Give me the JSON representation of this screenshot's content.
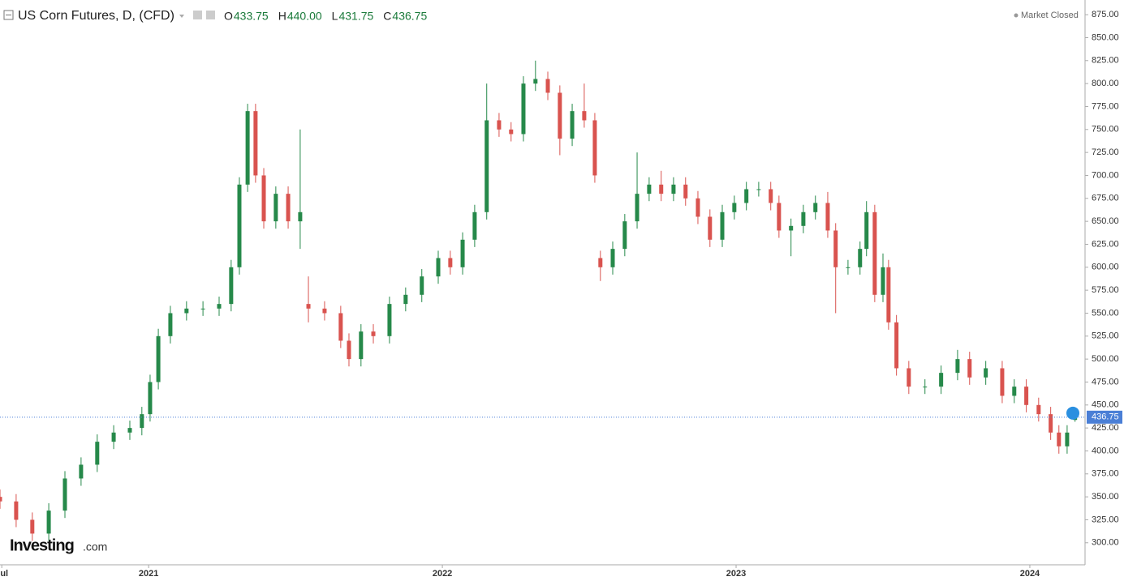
{
  "chart_data": {
    "type": "candlestick",
    "title": "US Corn Futures, D, (CFD)",
    "ohlc_header": [
      {
        "label": "O",
        "value": "433.75"
      },
      {
        "label": "H",
        "value": "440.00"
      },
      {
        "label": "L",
        "value": "431.75"
      },
      {
        "label": "C",
        "value": "436.75"
      }
    ],
    "status": "Market Closed",
    "logo": {
      "name": "Investing",
      "suffix": ".com"
    },
    "up_color": "#26894a",
    "down_color": "#d9534f",
    "last_price": {
      "value": 436.75,
      "label": "436.75"
    },
    "last_price_color": "#4a7fd6",
    "xlim": [
      2020.494,
      2024.188
    ],
    "xticks": [
      {
        "value": 2020.5,
        "label": "Jul"
      },
      {
        "value": 2021,
        "label": "2021"
      },
      {
        "value": 2022,
        "label": "2022"
      },
      {
        "value": 2023,
        "label": "2023"
      },
      {
        "value": 2024,
        "label": "2024"
      }
    ],
    "ylim": [
      276,
      891
    ],
    "yticks": [
      {
        "value": 300,
        "label": "300.00"
      },
      {
        "value": 325,
        "label": "325.00"
      },
      {
        "value": 350,
        "label": "350.00"
      },
      {
        "value": 375,
        "label": "375.00"
      },
      {
        "value": 400,
        "label": "400.00"
      },
      {
        "value": 425,
        "label": "425.00"
      },
      {
        "value": 450,
        "label": "450.00"
      },
      {
        "value": 475,
        "label": "475.00"
      },
      {
        "value": 500,
        "label": "500.00"
      },
      {
        "value": 525,
        "label": "525.00"
      },
      {
        "value": 550,
        "label": "550.00"
      },
      {
        "value": 575,
        "label": "575.00"
      },
      {
        "value": 600,
        "label": "600.00"
      },
      {
        "value": 625,
        "label": "625.00"
      },
      {
        "value": 650,
        "label": "650.00"
      },
      {
        "value": 675,
        "label": "675.00"
      },
      {
        "value": 700,
        "label": "700.00"
      },
      {
        "value": 725,
        "label": "725.00"
      },
      {
        "value": 750,
        "label": "750.00"
      },
      {
        "value": 775,
        "label": "775.00"
      },
      {
        "value": 800,
        "label": "800.00"
      },
      {
        "value": 825,
        "label": "825.00"
      },
      {
        "value": 850,
        "label": "850.00"
      },
      {
        "value": 875,
        "label": "875.00"
      }
    ],
    "x": [
      2020.494,
      2020.549,
      2020.604,
      2020.66,
      2020.715,
      2020.77,
      2020.825,
      2020.881,
      2020.936,
      2020.977,
      2021.005,
      2021.033,
      2021.074,
      2021.129,
      2021.185,
      2021.24,
      2021.281,
      2021.309,
      2021.337,
      2021.364,
      2021.392,
      2021.433,
      2021.475,
      2021.516,
      2021.544,
      2021.599,
      2021.654,
      2021.682,
      2021.723,
      2021.765,
      2021.82,
      2021.875,
      2021.93,
      2021.986,
      2022.027,
      2022.069,
      2022.11,
      2022.151,
      2022.193,
      2022.234,
      2022.276,
      2022.317,
      2022.359,
      2022.4,
      2022.442,
      2022.483,
      2022.519,
      2022.538,
      2022.58,
      2022.621,
      2022.663,
      2022.704,
      2022.745,
      2022.787,
      2022.828,
      2022.87,
      2022.911,
      2022.953,
      2022.994,
      2023.035,
      2023.077,
      2023.118,
      2023.146,
      2023.187,
      2023.229,
      2023.27,
      2023.312,
      2023.339,
      2023.381,
      2023.422,
      2023.444,
      2023.472,
      2023.5,
      2023.519,
      2023.546,
      2023.588,
      2023.643,
      2023.698,
      2023.754,
      2023.795,
      2023.85,
      2023.906,
      2023.947,
      2023.988,
      2024.03,
      2024.071,
      2024.099,
      2024.127,
      2024.154
    ],
    "open": [
      350,
      345,
      325,
      310,
      335,
      370,
      385,
      410,
      420,
      425,
      440,
      475,
      525,
      550,
      555,
      555,
      560,
      600,
      690,
      770,
      700,
      650,
      680,
      650,
      560,
      555,
      550,
      520,
      500,
      530,
      525,
      560,
      570,
      590,
      610,
      600,
      630,
      660,
      760,
      750,
      745,
      800,
      805,
      790,
      740,
      770,
      760,
      610,
      600,
      620,
      650,
      680,
      690,
      680,
      690,
      675,
      655,
      630,
      660,
      670,
      685,
      685,
      670,
      640,
      645,
      660,
      670,
      640,
      600,
      600,
      620,
      660,
      570,
      600,
      540,
      490,
      470,
      470,
      485,
      500,
      480,
      490,
      460,
      470,
      450,
      440,
      420,
      405,
      433.75
    ],
    "high": [
      358,
      353,
      333,
      343,
      378,
      393,
      418,
      428,
      433,
      448,
      483,
      533,
      558,
      563,
      563,
      568,
      608,
      698,
      778,
      778,
      708,
      688,
      688,
      750,
      590,
      563,
      558,
      528,
      538,
      538,
      568,
      578,
      598,
      618,
      618,
      638,
      668,
      800,
      768,
      758,
      808,
      825,
      813,
      798,
      778,
      800,
      768,
      618,
      628,
      658,
      725,
      698,
      705,
      698,
      698,
      683,
      663,
      668,
      678,
      693,
      693,
      693,
      678,
      653,
      668,
      678,
      682,
      648,
      608,
      628,
      672,
      668,
      615,
      608,
      548,
      498,
      478,
      493,
      510,
      508,
      498,
      498,
      478,
      478,
      458,
      448,
      428,
      428,
      440
    ],
    "low": [
      337,
      317,
      302,
      302,
      327,
      362,
      377,
      402,
      412,
      417,
      432,
      467,
      517,
      542,
      547,
      547,
      552,
      592,
      682,
      692,
      642,
      642,
      642,
      620,
      540,
      542,
      512,
      492,
      492,
      517,
      517,
      552,
      562,
      582,
      592,
      592,
      622,
      652,
      742,
      737,
      737,
      792,
      782,
      722,
      732,
      752,
      692,
      585,
      592,
      612,
      642,
      672,
      672,
      672,
      667,
      647,
      622,
      622,
      652,
      662,
      677,
      662,
      632,
      612,
      637,
      652,
      632,
      550,
      592,
      592,
      612,
      562,
      562,
      532,
      482,
      462,
      462,
      462,
      477,
      472,
      472,
      452,
      452,
      442,
      432,
      412,
      397,
      397,
      431.75
    ],
    "close": [
      345,
      325,
      310,
      335,
      370,
      385,
      410,
      420,
      425,
      440,
      475,
      525,
      550,
      555,
      555,
      560,
      600,
      690,
      770,
      700,
      650,
      680,
      650,
      660,
      555,
      550,
      520,
      500,
      530,
      525,
      560,
      570,
      590,
      610,
      600,
      630,
      660,
      760,
      750,
      745,
      800,
      805,
      790,
      740,
      770,
      760,
      700,
      600,
      620,
      650,
      680,
      690,
      680,
      690,
      675,
      655,
      630,
      660,
      670,
      685,
      685,
      670,
      640,
      645,
      660,
      670,
      640,
      600,
      600,
      620,
      660,
      570,
      600,
      540,
      490,
      470,
      470,
      485,
      500,
      480,
      490,
      460,
      470,
      450,
      440,
      420,
      405,
      420,
      436.75
    ]
  }
}
